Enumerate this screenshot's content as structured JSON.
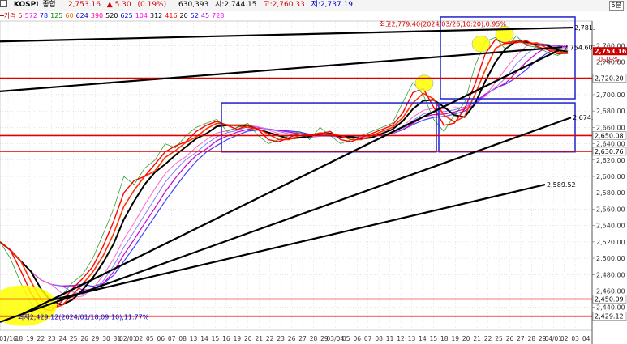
{
  "header": {
    "code": "KOSPI",
    "name": "종합",
    "price": "2,753.16",
    "change": "▲ 5.30",
    "change_pct": "(0.19%)",
    "volume": "630,393",
    "open": "시:2,744.15",
    "high": "고:2,760.33",
    "low": "저:2,737.19",
    "timeframe": "5분"
  },
  "legend": [
    {
      "label": "가격",
      "color": "#cc0000"
    },
    {
      "label": "5",
      "color": "#ff0000"
    },
    {
      "label": "572",
      "color": "#ff00ff"
    },
    {
      "label": "78",
      "color": "#0000ff"
    },
    {
      "label": "125",
      "color": "#008800"
    },
    {
      "label": "60",
      "color": "#ff6600"
    },
    {
      "label": "624",
      "color": "#0000cc"
    },
    {
      "label": "390",
      "color": "#ff0099"
    },
    {
      "label": "520",
      "color": "#000000"
    },
    {
      "label": "625",
      "color": "#0000ff"
    },
    {
      "label": "104",
      "color": "#ff00ff"
    },
    {
      "label": "312",
      "color": "#000000"
    },
    {
      "label": "416",
      "color": "#ff0000"
    },
    {
      "label": "20",
      "color": "#000000"
    },
    {
      "label": "52",
      "color": "#0000ff"
    },
    {
      "label": "45",
      "color": "#9900cc"
    },
    {
      "label": "728",
      "color": "#ff00ff"
    }
  ],
  "colors": {
    "hline": "#e00000",
    "trendline": "#000000",
    "box": "#2020d0",
    "highlight": "#ffff00",
    "price_tag_bg": "#cc0000",
    "axis_label_bg": "#ffffff"
  },
  "chart_data": {
    "type": "line",
    "title": "",
    "xlabel": "",
    "ylabel": "",
    "ylim": [
      2412,
      2790
    ],
    "grid": true,
    "x_ticks": [
      "01/16",
      "18",
      "19",
      "22",
      "23",
      "24",
      "25",
      "26",
      "29",
      "30",
      "31",
      "02/01",
      "02",
      "05",
      "06",
      "07",
      "08",
      "13",
      "14",
      "15",
      "16",
      "19",
      "20",
      "21",
      "22",
      "23",
      "26",
      "27",
      "28",
      "29",
      "03/04",
      "05",
      "06",
      "07",
      "08",
      "11",
      "12",
      "13",
      "14",
      "15",
      "18",
      "19",
      "20",
      "21",
      "22",
      "25",
      "26",
      "27",
      "28",
      "29",
      "04/01",
      "02",
      "03",
      "04"
    ],
    "y_ticks": [
      2440,
      2460,
      2480,
      2500,
      2520,
      2540,
      2560,
      2580,
      2600,
      2620,
      2640,
      2660,
      2680,
      2700,
      2740,
      2760
    ],
    "horizontal_levels": [
      2720.2,
      2650.08,
      2630.76,
      2450.09,
      2429.12
    ],
    "trendline_labels": [
      "2,781.",
      "2,754.60",
      "2,674.",
      "2,589.52"
    ],
    "current_price": 2753.16,
    "current_change": "0.19%",
    "annotations": [
      {
        "text": "최고2,779.40(2024/03/26,10:20),0.95%",
        "value": 2779.4
      },
      {
        "text": "최저2,429.12(2024/01/18,09:10),11.77%",
        "value": 2429.12
      }
    ],
    "series": [
      {
        "values": [
          2520,
          2500,
          2470,
          2445,
          2432,
          2440,
          2455,
          2470,
          2480,
          2500,
          2530,
          2560,
          2600,
          2590,
          2610,
          2620,
          2640,
          2635,
          2650,
          2660,
          2665,
          2670,
          2655,
          2660,
          2665,
          2650,
          2640,
          2645,
          2650,
          2655,
          2645,
          2660,
          2650,
          2640,
          2645,
          2650,
          2655,
          2660,
          2665,
          2690,
          2715,
          2700,
          2670,
          2655,
          2675,
          2690,
          2735,
          2765,
          2770,
          2755,
          2772,
          2760,
          2758,
          2752,
          2748,
          2753
        ]
      }
    ]
  }
}
